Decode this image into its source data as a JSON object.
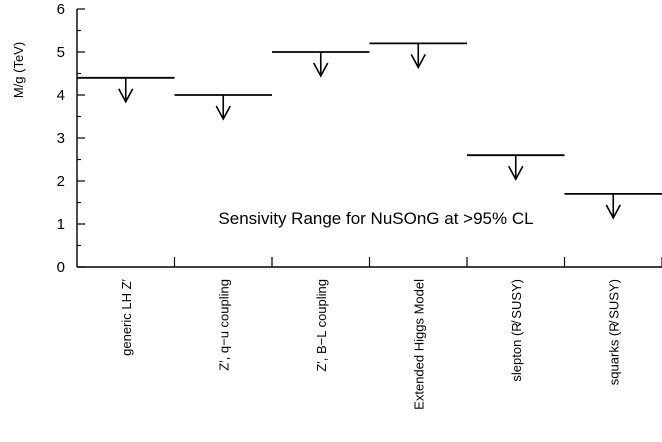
{
  "chart_data": {
    "type": "bar",
    "title": "",
    "ylabel": "M/g  (TeV)",
    "xlabel": "",
    "ylim": [
      0,
      6
    ],
    "yticks": [
      "0",
      "1",
      "2",
      "3",
      "4",
      "5",
      "6"
    ],
    "grid": false,
    "categories": [
      "generic LH Z′",
      "Z′, q−u coupling",
      "Z′, B−L coupling",
      "Extended Higgs Model",
      "slepton (R̸ SUSY)",
      "squarks (R̸ SUSY)"
    ],
    "values": [
      4.4,
      4.0,
      5.0,
      5.2,
      2.6,
      1.7
    ],
    "marker": "lower-limit arrow",
    "annotation": "Sensivity Range for NuSOnG at >95% CL"
  }
}
